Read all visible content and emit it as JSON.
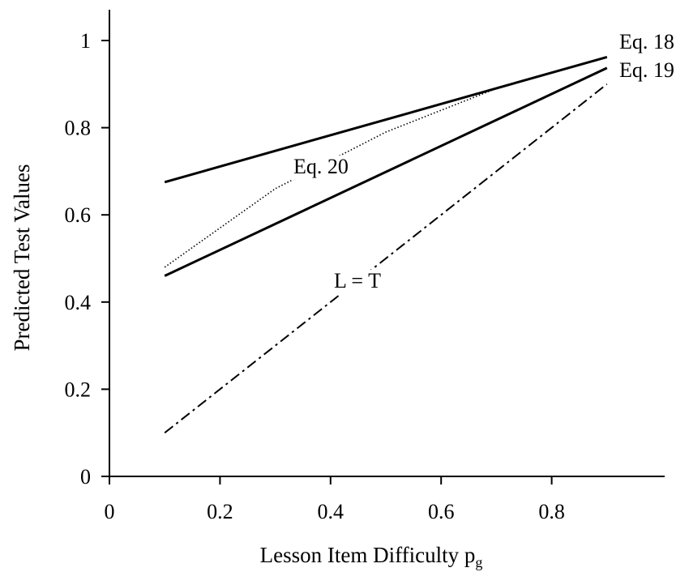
{
  "chart_data": {
    "type": "line",
    "xlabel": "Lesson Item Difficulty p",
    "xlabel_subscript": "g",
    "ylabel": "Predicted Test Values",
    "xlim": [
      0,
      1
    ],
    "ylim": [
      0,
      1.08
    ],
    "x_ticks": [
      "0",
      "0.2",
      "0.4",
      "0.6",
      "0.8"
    ],
    "y_ticks": [
      "0",
      "0.2",
      "0.4",
      "0.6",
      "0.8",
      "1"
    ],
    "grid": false,
    "series": [
      {
        "name": "Eq. 18",
        "style": "solid",
        "stroke_width": 3,
        "x": [
          0.1,
          0.9
        ],
        "y": [
          0.675,
          0.962
        ]
      },
      {
        "name": "Eq. 19",
        "style": "solid",
        "stroke_width": 3,
        "x": [
          0.1,
          0.9
        ],
        "y": [
          0.46,
          0.937
        ]
      },
      {
        "name": "Eq. 20",
        "style": "dotted",
        "stroke_width": 1.6,
        "x": [
          0.1,
          0.3,
          0.5,
          0.7,
          0.9
        ],
        "y": [
          0.48,
          0.66,
          0.79,
          0.89,
          0.962
        ]
      },
      {
        "name": "L = T",
        "style": "dashdot",
        "stroke_width": 2,
        "x": [
          0.1,
          0.9
        ],
        "y": [
          0.1,
          0.9
        ]
      }
    ]
  }
}
